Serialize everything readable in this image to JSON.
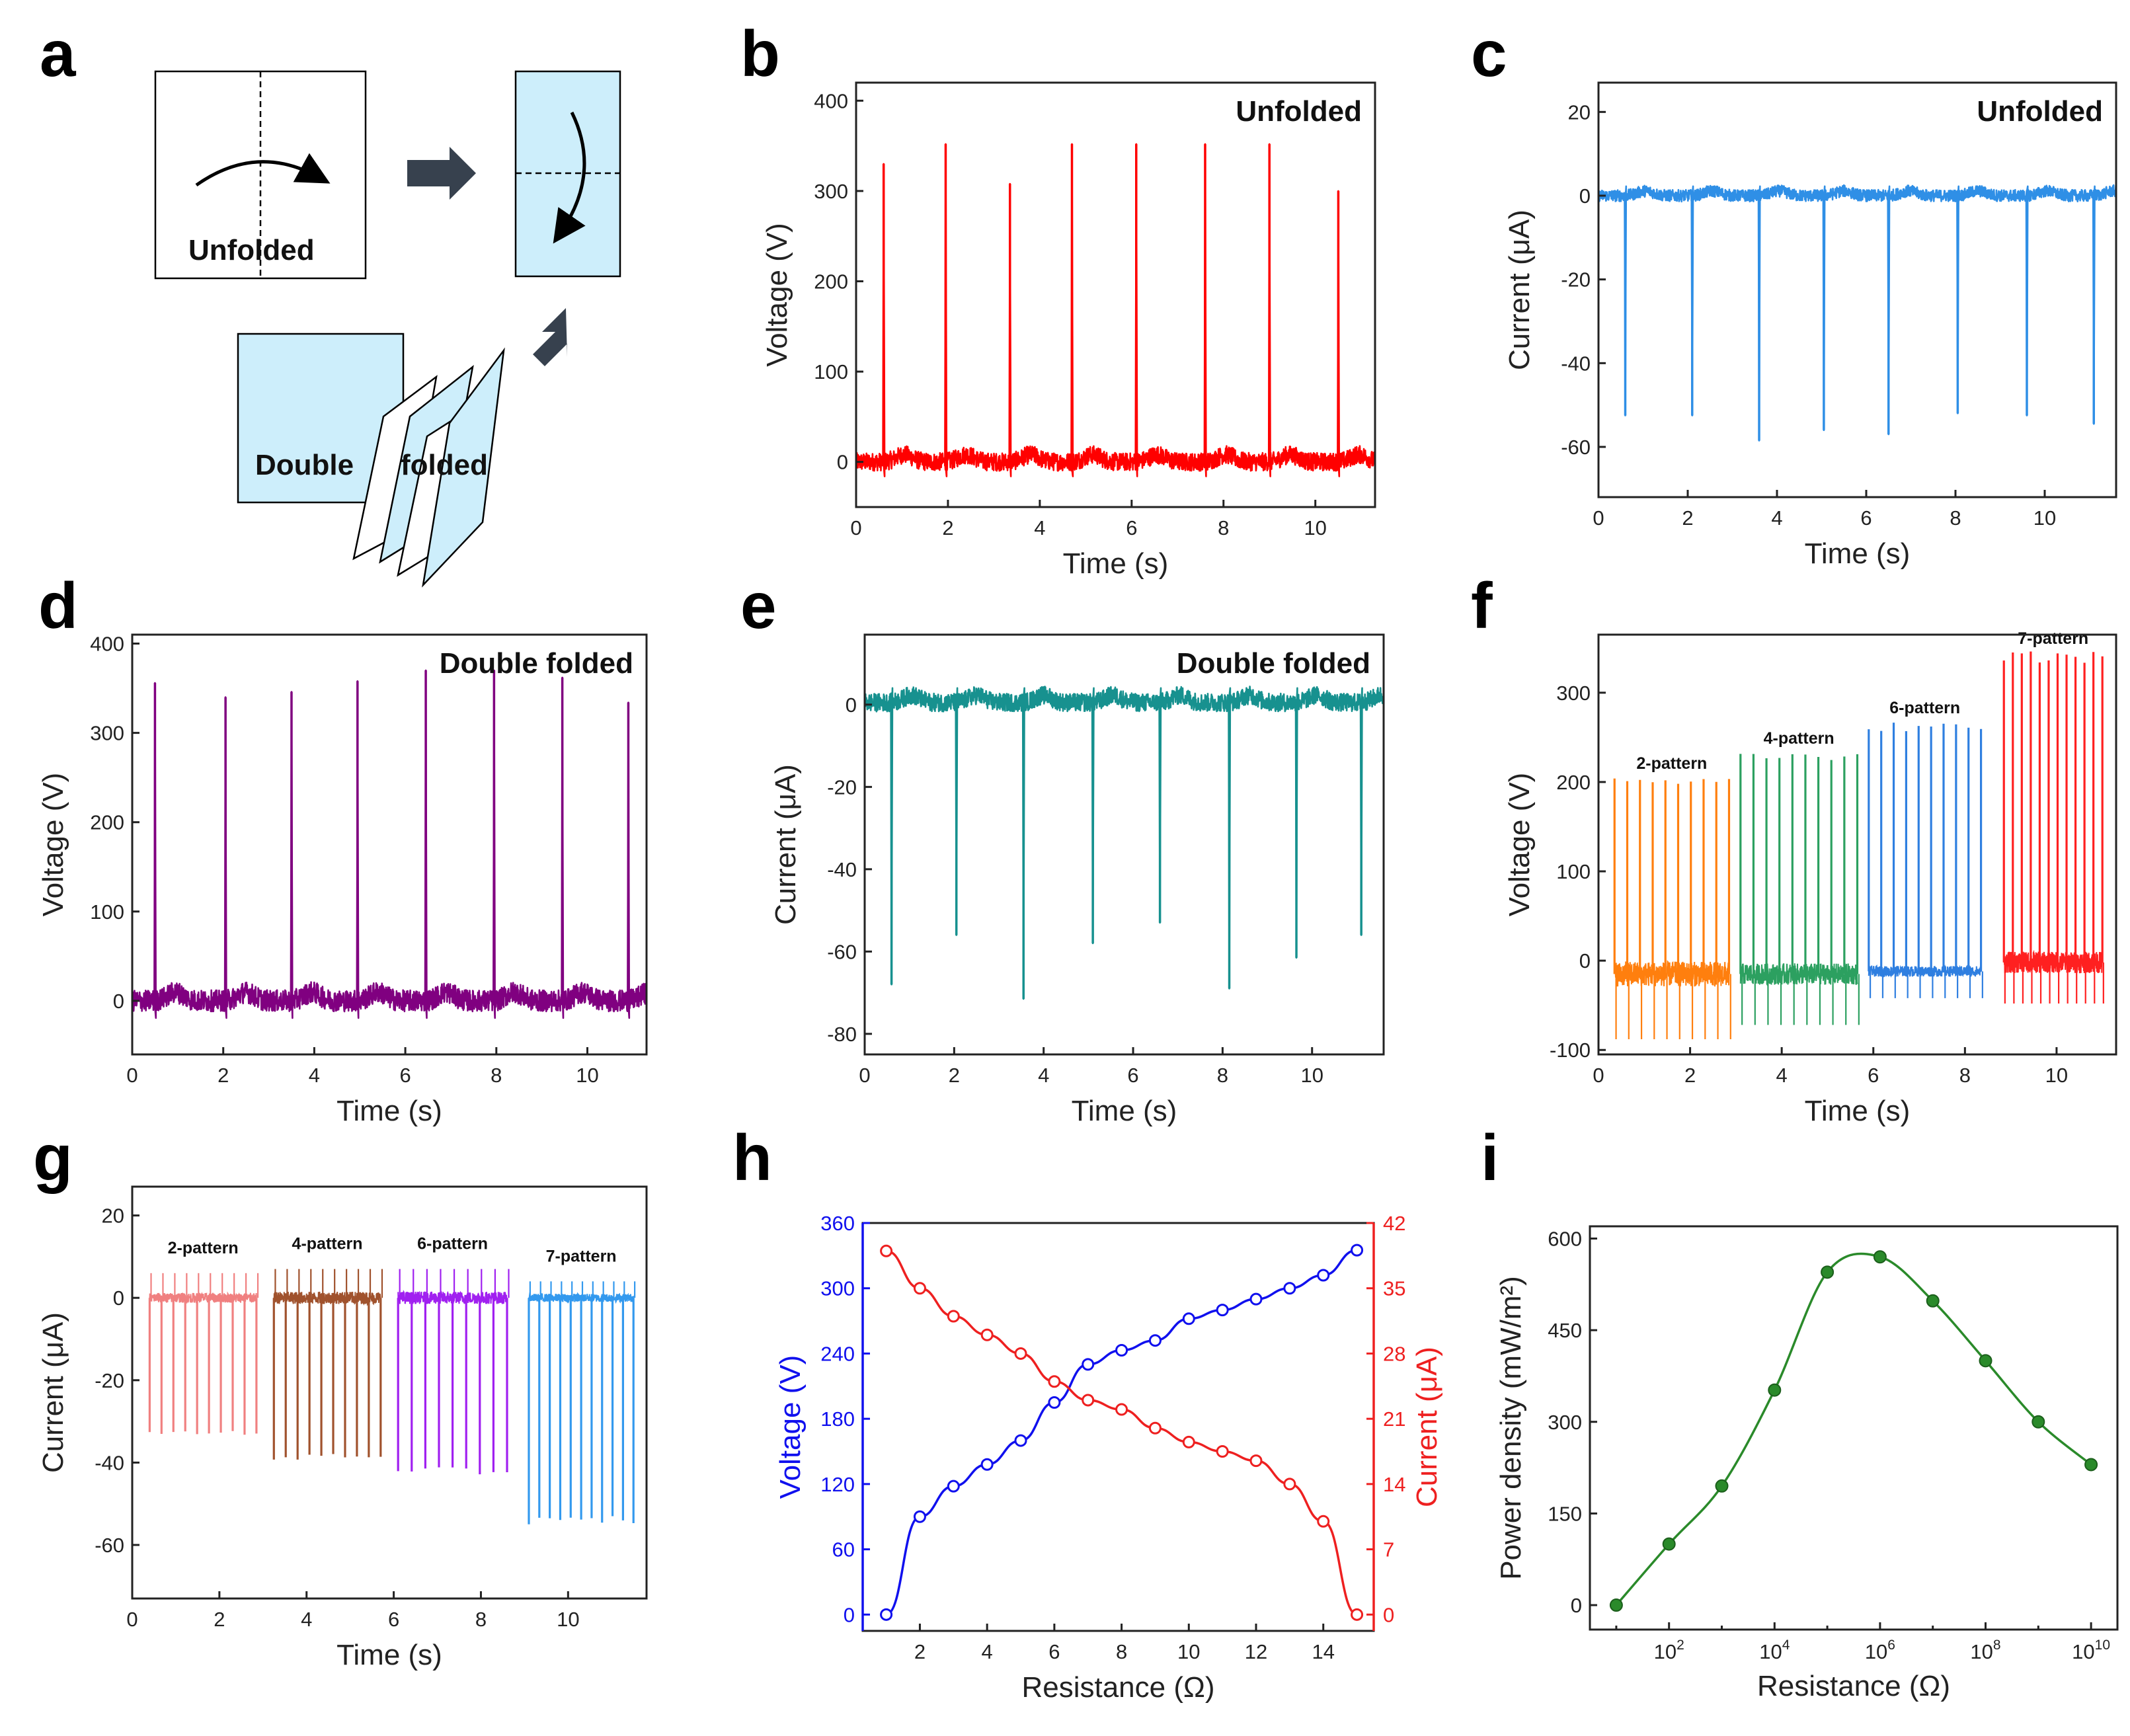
{
  "panels": {
    "a": {
      "label": "a",
      "unfolded_label": "Unfolded",
      "folded_label_1": "Double",
      "folded_label_2": "folded",
      "fill": "#cdeefb"
    },
    "b": {
      "label": "b"
    },
    "c": {
      "label": "c"
    },
    "d": {
      "label": "d"
    },
    "e": {
      "label": "e"
    },
    "f": {
      "label": "f"
    },
    "g": {
      "label": "g"
    },
    "h": {
      "label": "h"
    },
    "i": {
      "label": "i"
    }
  },
  "chart_data": [
    {
      "id": "b",
      "type": "line",
      "annotation": "Unfolded",
      "xlabel": "Time (s)",
      "ylabel": "Voltage (V)",
      "xlim": [
        0,
        11.3
      ],
      "ylim": [
        -50,
        420
      ],
      "xticks": [
        0,
        2,
        4,
        6,
        8,
        10
      ],
      "yticks": [
        0,
        100,
        200,
        300,
        400
      ],
      "color": "#ff0000",
      "baseline": 0,
      "noise": 10,
      "peak_times": [
        0.6,
        1.95,
        3.35,
        4.7,
        6.1,
        7.6,
        9.0,
        10.5
      ],
      "peak_values": [
        330,
        352,
        308,
        352,
        352,
        352,
        352,
        300
      ]
    },
    {
      "id": "c",
      "type": "line",
      "annotation": "Unfolded",
      "xlabel": "Time (s)",
      "ylabel": "Current (μA)",
      "xlim": [
        0,
        11.6
      ],
      "ylim": [
        -72,
        27
      ],
      "xticks": [
        0,
        2,
        4,
        6,
        8,
        10
      ],
      "yticks": [
        -60,
        -40,
        -20,
        0,
        20
      ],
      "color": "#2f8fe6",
      "baseline": 0,
      "noise": 1.4,
      "peak_times": [
        0.6,
        2.1,
        3.6,
        5.05,
        6.5,
        8.05,
        9.6,
        11.1
      ],
      "peak_values": [
        -52.5,
        -52.5,
        -58.5,
        -56,
        -57,
        -52,
        -52.5,
        -54.5
      ]
    },
    {
      "id": "d",
      "type": "line",
      "annotation": "Double folded",
      "xlabel": "Time (s)",
      "ylabel": "Voltage (V)",
      "xlim": [
        0,
        11.3
      ],
      "ylim": [
        -60,
        410
      ],
      "xticks": [
        0,
        2,
        4,
        6,
        8,
        10
      ],
      "yticks": [
        0,
        100,
        200,
        300,
        400
      ],
      "color": "#800080",
      "baseline": 0,
      "noise": 12,
      "peak_times": [
        0.5,
        2.05,
        3.5,
        4.95,
        6.45,
        7.95,
        9.45,
        10.9
      ],
      "peak_values": [
        356,
        340,
        346,
        358,
        370,
        370,
        362,
        334
      ]
    },
    {
      "id": "e",
      "type": "line",
      "annotation": "Double folded",
      "xlabel": "Time (s)",
      "ylabel": "Current (μA)",
      "xlim": [
        0,
        11.6
      ],
      "ylim": [
        -85,
        17
      ],
      "xticks": [
        0,
        2,
        4,
        6,
        8,
        10
      ],
      "yticks": [
        -80,
        -60,
        -40,
        -20,
        0
      ],
      "color": "#17918f",
      "baseline": 0.5,
      "noise": 2.2,
      "peak_times": [
        0.6,
        2.05,
        3.55,
        5.1,
        6.6,
        8.15,
        9.65,
        11.1
      ],
      "peak_values": [
        -68,
        -56,
        -71.5,
        -58,
        -53,
        -69,
        -61.5,
        -56
      ]
    },
    {
      "id": "f",
      "type": "line",
      "xlabel": "Time (s)",
      "ylabel": "Voltage (V)",
      "xlim": [
        0,
        11.3
      ],
      "ylim": [
        -105,
        365
      ],
      "xticks": [
        0,
        2,
        4,
        6,
        8,
        10
      ],
      "yticks": [
        -100,
        0,
        100,
        200,
        300
      ],
      "series": [
        {
          "name": "2-pattern",
          "color": "#ff7f0e",
          "t_start": 0.35,
          "t_end": 2.85,
          "count": 10,
          "peak": 200,
          "low": -88,
          "baseline": -15,
          "noise": 14
        },
        {
          "name": "4-pattern",
          "color": "#2ca060",
          "t_start": 3.1,
          "t_end": 5.65,
          "count": 10,
          "peak": 228,
          "low": -72,
          "baseline": -15,
          "noise": 12
        },
        {
          "name": "6-pattern",
          "color": "#2f7fe0",
          "t_start": 5.9,
          "t_end": 8.35,
          "count": 10,
          "peak": 262,
          "low": -42,
          "baseline": -12,
          "noise": 6
        },
        {
          "name": "7-pattern",
          "color": "#ff2020",
          "t_start": 8.85,
          "t_end": 11.0,
          "count": 12,
          "peak": 340,
          "low": -48,
          "baseline": -2,
          "noise": 12
        }
      ]
    },
    {
      "id": "g",
      "type": "line",
      "xlabel": "Time (s)",
      "ylabel": "Current (μA)",
      "xlim": [
        0,
        11.8
      ],
      "ylim": [
        -73,
        27
      ],
      "xticks": [
        0,
        2,
        4,
        6,
        8,
        10
      ],
      "yticks": [
        -60,
        -40,
        -20,
        0,
        20
      ],
      "series": [
        {
          "name": "2-pattern",
          "color": "#f08080",
          "t_start": 0.4,
          "t_end": 2.85,
          "count": 10,
          "peak": -33,
          "high": 6,
          "baseline": 0,
          "noise": 1.2
        },
        {
          "name": "4-pattern",
          "color": "#a0522d",
          "t_start": 3.25,
          "t_end": 5.7,
          "count": 10,
          "peak": -38.5,
          "high": 7,
          "baseline": 0,
          "noise": 1.5
        },
        {
          "name": "6-pattern",
          "color": "#a020f0",
          "t_start": 6.1,
          "t_end": 8.6,
          "count": 9,
          "peak": -42,
          "high": 7,
          "baseline": 0,
          "noise": 1.5
        },
        {
          "name": "7-pattern",
          "color": "#3399ee",
          "t_start": 9.1,
          "t_end": 11.5,
          "count": 11,
          "peak": -54,
          "high": 4,
          "baseline": 0,
          "noise": 1.0
        }
      ]
    },
    {
      "id": "h",
      "type": "line",
      "xlabel": "Resistance (Ω)",
      "xlim": [
        0.3,
        15.5
      ],
      "xticks": [
        2,
        4,
        6,
        8,
        10,
        12,
        14
      ],
      "left_axis": {
        "label": "Voltage (V)",
        "color": "#1010ee",
        "ylim": [
          -15,
          360
        ],
        "yticks": [
          0,
          60,
          120,
          180,
          240,
          300,
          360
        ]
      },
      "right_axis": {
        "label": "Current (μA)",
        "color": "#ee2020",
        "ylim": [
          -1.75,
          42
        ],
        "yticks": [
          0,
          7,
          14,
          21,
          28,
          35,
          42
        ]
      },
      "x": [
        1,
        2,
        3,
        4,
        5,
        6,
        7,
        8,
        9,
        10,
        11,
        12,
        13,
        14,
        15
      ],
      "series": [
        {
          "name": "Voltage",
          "axis": "left",
          "values": [
            0,
            90,
            118,
            138,
            160,
            195,
            230,
            243,
            252,
            272,
            280,
            290,
            300,
            312,
            335
          ]
        },
        {
          "name": "Current",
          "axis": "right",
          "values": [
            39,
            35,
            32,
            30,
            28,
            25,
            23,
            22,
            20,
            18.5,
            17.5,
            16.5,
            14,
            10,
            0
          ]
        }
      ]
    },
    {
      "id": "i",
      "type": "scatter",
      "xlabel": "Resistance (Ω)",
      "ylabel": "Power density (mW/m²)",
      "xscale": "log",
      "xlim_log10": [
        0.5,
        10.5
      ],
      "ylim": [
        -40,
        620
      ],
      "yticks": [
        0,
        150,
        300,
        450,
        600
      ],
      "xtick_exponents": [
        2,
        4,
        6,
        8,
        10
      ],
      "color": "#2a8a2a",
      "x_log10": [
        1,
        2,
        3,
        4,
        5,
        6,
        7,
        8,
        9,
        10
      ],
      "values": [
        0,
        100,
        195,
        352,
        545,
        570,
        498,
        400,
        300,
        230
      ]
    }
  ]
}
